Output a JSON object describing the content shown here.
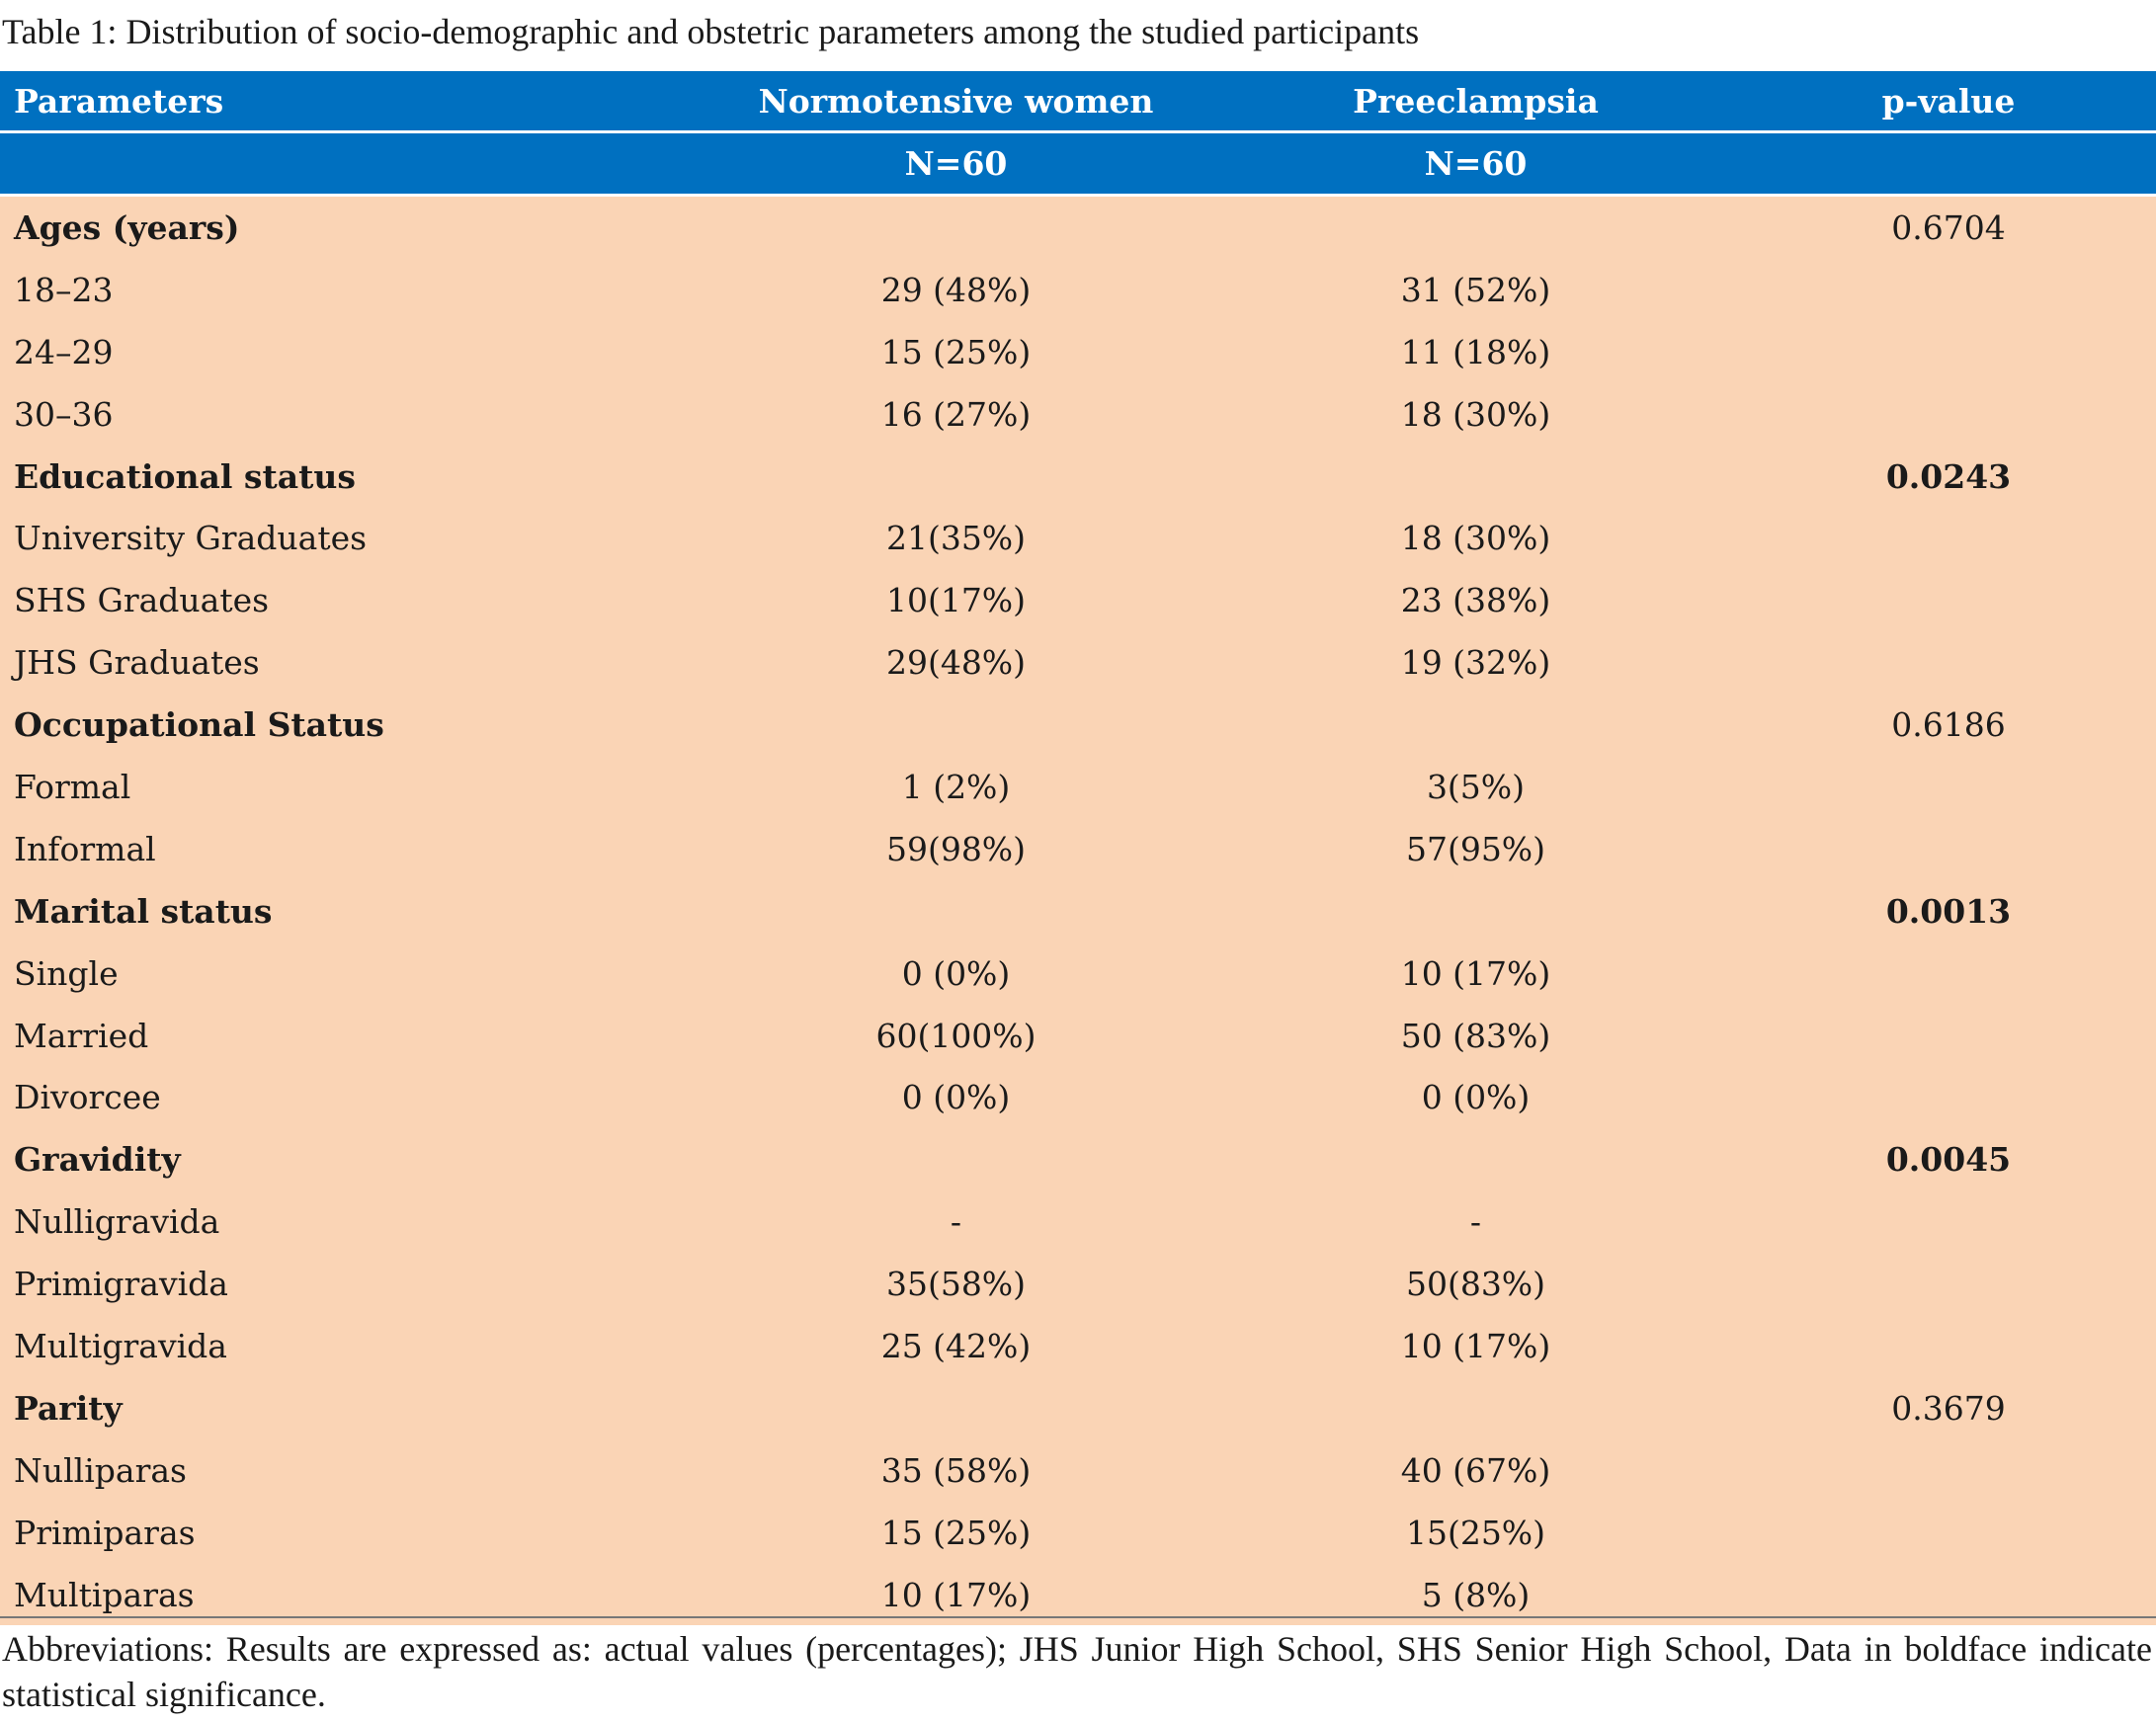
{
  "caption": "Table 1: Distribution of socio-demographic and obstetric parameters among the studied participants",
  "header": {
    "col1": "Parameters",
    "col2": "Normotensive women",
    "col3": "Preeclampsia",
    "col4": "p-value",
    "sub2": "N=60",
    "sub3": "N=60"
  },
  "groups": [
    {
      "title": "Ages (years)",
      "pvalue": "0.6704",
      "significant": false,
      "rows": [
        {
          "label": "18–23",
          "normo": "29 (48%)",
          "pre": "31 (52%)"
        },
        {
          "label": "24–29",
          "normo": "15 (25%)",
          "pre": "11 (18%)"
        },
        {
          "label": "30–36",
          "normo": "16 (27%)",
          "pre": "18 (30%)"
        }
      ]
    },
    {
      "title": "Educational status",
      "pvalue": "0.0243",
      "significant": true,
      "rows": [
        {
          "label": "University Graduates",
          "normo": "21(35%)",
          "pre": "18 (30%)"
        },
        {
          "label": "SHS Graduates",
          "normo": "10(17%)",
          "pre": "23 (38%)"
        },
        {
          "label": "JHS Graduates",
          "normo": "29(48%)",
          "pre": "19 (32%)"
        }
      ]
    },
    {
      "title": "Occupational Status",
      "pvalue": "0.6186",
      "significant": false,
      "rows": [
        {
          "label": "Formal",
          "normo": "1 (2%)",
          "pre": "3(5%)"
        },
        {
          "label": "Informal",
          "normo": "59(98%)",
          "pre": "57(95%)"
        }
      ]
    },
    {
      "title": "Marital status",
      "pvalue": "0.0013",
      "significant": true,
      "rows": [
        {
          "label": "Single",
          "normo": "0 (0%)",
          "pre": "10 (17%)"
        },
        {
          "label": "Married",
          "normo": "60(100%)",
          "pre": "50 (83%)"
        },
        {
          "label": "Divorcee",
          "normo": "0 (0%)",
          "pre": "0 (0%)"
        }
      ]
    },
    {
      "title": "Gravidity",
      "pvalue": "0.0045",
      "significant": true,
      "rows": [
        {
          "label": "Nulligravida",
          "normo": "-",
          "pre": "-"
        },
        {
          "label": "Primigravida",
          "normo": "35(58%)",
          "pre": "50(83%)"
        },
        {
          "label": "Multigravida",
          "normo": "25 (42%)",
          "pre": "10 (17%)"
        }
      ]
    },
    {
      "title": "Parity",
      "pvalue": "0.3679",
      "significant": false,
      "rows": [
        {
          "label": "Nulliparas",
          "normo": "35 (58%)",
          "pre": "40 (67%)"
        },
        {
          "label": "Primiparas",
          "normo": "15 (25%)",
          "pre": "15(25%)"
        },
        {
          "label": "Multiparas",
          "normo": "10 (17%)",
          "pre": "5 (8%)"
        }
      ]
    }
  ],
  "footer": "Abbreviations: Results are expressed as: actual values (percentages); JHS Junior High School, SHS Senior High School, Data in boldface indicate statistical significance.",
  "colors": {
    "header_bg": "#0070c0",
    "body_bg": "#fad4b5"
  }
}
